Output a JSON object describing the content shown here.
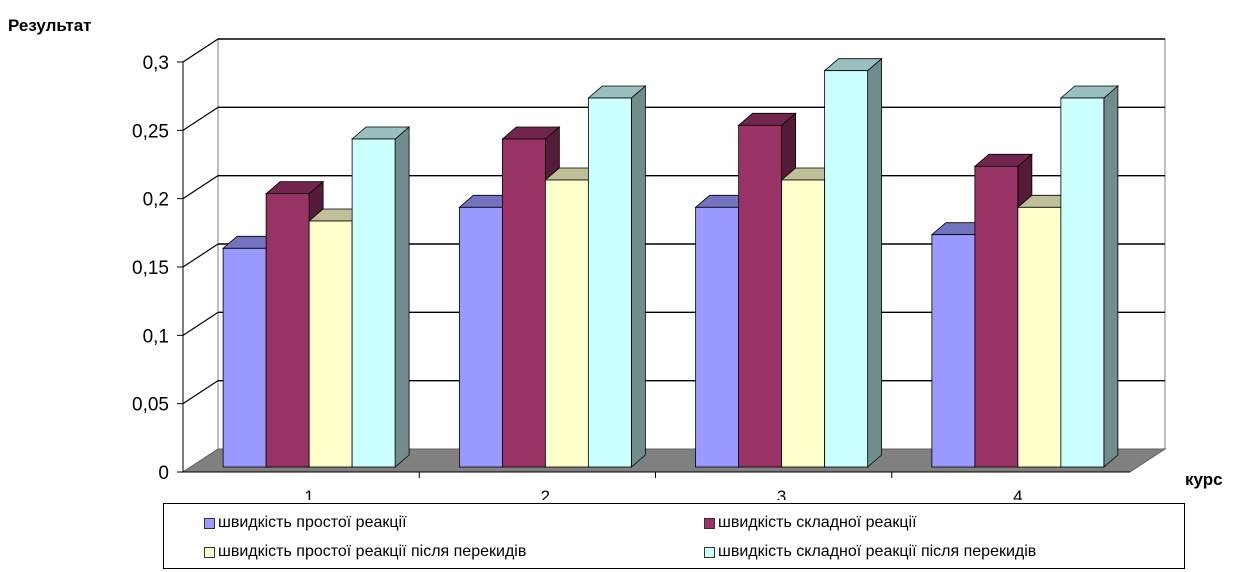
{
  "chart_data": {
    "type": "bar",
    "ylabel": "Результат",
    "xlabel": "курс",
    "categories": [
      "1",
      "2",
      "3",
      "4"
    ],
    "ylim": [
      0,
      0.3
    ],
    "yticks": [
      "0",
      "0,05",
      "0,1",
      "0,15",
      "0,2",
      "0,25",
      "0,3"
    ],
    "grid": true,
    "legend_position": "bottom",
    "series": [
      {
        "name": "швидкість простої реакції",
        "values": [
          0.16,
          0.19,
          0.19,
          0.17
        ],
        "color": "#9999ff"
      },
      {
        "name": "швидкість складної реакції",
        "values": [
          0.2,
          0.24,
          0.25,
          0.22
        ],
        "color": "#993366"
      },
      {
        "name": "швидкість простої реакції після перекидів",
        "values": [
          0.18,
          0.21,
          0.21,
          0.19
        ],
        "color": "#ffffcc"
      },
      {
        "name": "швидкість складної реакції після перекидів",
        "values": [
          0.24,
          0.27,
          0.29,
          0.27
        ],
        "color": "#ccffff"
      }
    ]
  }
}
